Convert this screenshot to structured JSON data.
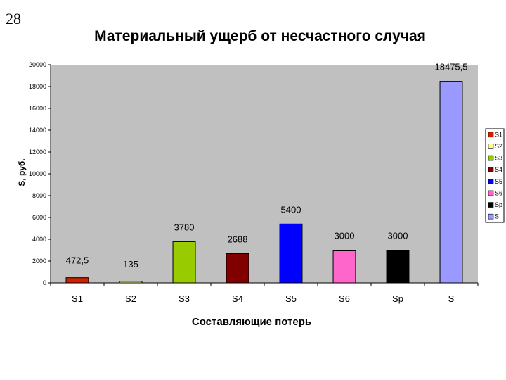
{
  "slide_number": "28",
  "chart_data": {
    "type": "bar",
    "title": "Материальный ущерб от несчастного случая",
    "xlabel": "Составляющие потерь",
    "ylabel": "S, руб.",
    "ylim": [
      0,
      20000
    ],
    "yticks": [
      0,
      2000,
      4000,
      6000,
      8000,
      10000,
      12000,
      14000,
      16000,
      18000,
      20000
    ],
    "categories": [
      "S1",
      "S2",
      "S3",
      "S4",
      "S5",
      "S6",
      "Sp",
      "S"
    ],
    "values": [
      472.5,
      135,
      3780,
      2688,
      5400,
      3000,
      3000,
      18475.5
    ],
    "data_labels": [
      "472,5",
      "135",
      "3780",
      "2688",
      "5400",
      "3000",
      "3000",
      "18475,5"
    ],
    "colors": [
      "#cc2200",
      "#ffff99",
      "#99cc00",
      "#800000",
      "#0000ff",
      "#ff66cc",
      "#000000",
      "#9999ff"
    ],
    "legend": [
      "S1",
      "S2",
      "S3",
      "S4",
      "S5",
      "S6",
      "Sp",
      "S"
    ],
    "legend_position": "right",
    "grid": false,
    "plot_background": "#c0c0c0"
  }
}
